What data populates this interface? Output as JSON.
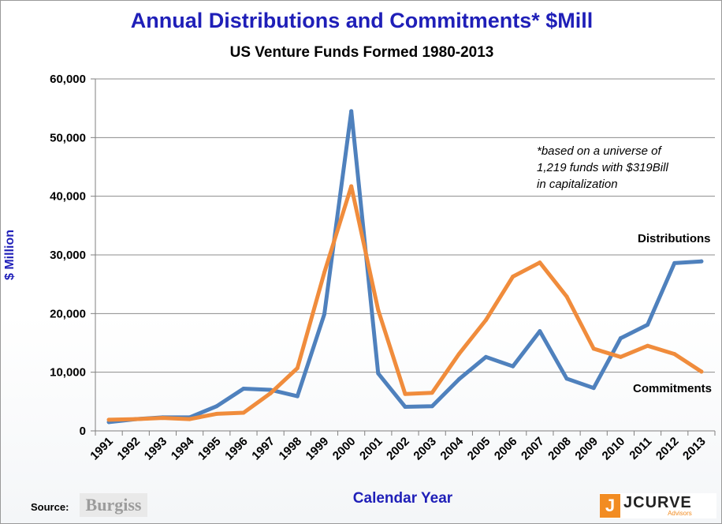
{
  "chart_data": {
    "type": "line",
    "title": "Annual Distributions and Commitments* $Mill",
    "subtitle": "US Venture Funds Formed 1980-2013",
    "xlabel": "Calendar Year",
    "ylabel": "$ Million",
    "ylim": [
      0,
      60000
    ],
    "yticks": [
      0,
      10000,
      20000,
      30000,
      40000,
      50000,
      60000
    ],
    "ytick_labels": [
      "0",
      "10,000",
      "20,000",
      "30,000",
      "40,000",
      "50,000",
      "60,000"
    ],
    "grid": "horizontal",
    "categories": [
      "1991",
      "1992",
      "1993",
      "1994",
      "1995",
      "1996",
      "1997",
      "1998",
      "1999",
      "2000",
      "2001",
      "2002",
      "2003",
      "2004",
      "2005",
      "2006",
      "2007",
      "2008",
      "2009",
      "2010",
      "2011",
      "2012",
      "2013"
    ],
    "series": [
      {
        "name": "Distributions",
        "color": "#4f81bd",
        "values": [
          1500,
          2000,
          2300,
          2300,
          4200,
          7200,
          7000,
          5900,
          19900,
          54500,
          9800,
          4100,
          4200,
          8800,
          12600,
          11000,
          17000,
          8900,
          7300,
          15800,
          18100,
          28600,
          28900
        ]
      },
      {
        "name": "Commitments",
        "color": "#f08c3c",
        "values": [
          1900,
          2000,
          2200,
          2000,
          2900,
          3100,
          6400,
          10700,
          27000,
          41700,
          20600,
          6300,
          6500,
          13100,
          18900,
          26300,
          28700,
          22900,
          14000,
          12600,
          14500,
          13100,
          10100
        ]
      }
    ],
    "annotation": [
      "*based on  a universe of",
      "1,219 funds with  $319Bill",
      "in capitalization"
    ]
  },
  "footer": {
    "source_label": "Source:",
    "burgiss_logo": "Burgiss",
    "jcurve_logo": "JCURVE",
    "jcurve_sub": "Advisors"
  }
}
